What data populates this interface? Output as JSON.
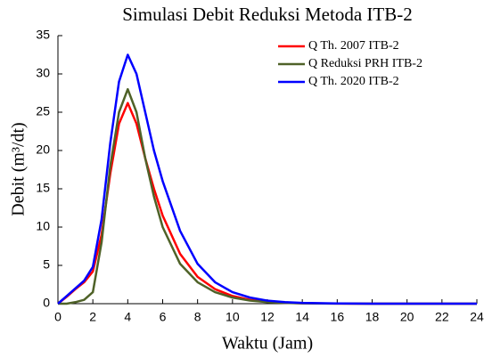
{
  "chart_data": {
    "type": "line",
    "title": "Simulasi Debit Reduksi Metoda ITB-2",
    "x_label": "Waktu (Jam)",
    "y_label": "Debit (m³/dt)",
    "x": [
      0,
      0.5,
      1,
      1.5,
      2,
      2.5,
      3,
      3.5,
      4,
      4.5,
      5,
      5.5,
      6,
      7,
      8,
      9,
      10,
      11,
      12,
      13,
      14,
      16,
      18,
      20,
      22,
      24
    ],
    "series": [
      {
        "name": "Q Th. 2007 ITB-2",
        "color": "#ff0000",
        "values": [
          0,
          0.9,
          1.9,
          2.8,
          4.2,
          9,
          17,
          23.5,
          26.2,
          23.5,
          19,
          15,
          11.5,
          6.5,
          3.5,
          1.9,
          1.0,
          0.5,
          0.25,
          0.12,
          0.06,
          0.02,
          0,
          0,
          0,
          0
        ]
      },
      {
        "name": "Q Reduksi PRH ITB-2",
        "color": "#4f6228",
        "values": [
          0,
          0,
          0.2,
          0.5,
          1.5,
          8,
          18,
          25,
          28,
          25,
          19,
          14,
          10,
          5.2,
          2.8,
          1.5,
          0.8,
          0.4,
          0.2,
          0.1,
          0.05,
          0.01,
          0,
          0,
          0,
          0
        ]
      },
      {
        "name": "Q Th. 2020 ITB-2",
        "color": "#0000ff",
        "values": [
          0,
          1.0,
          2.0,
          3.0,
          4.8,
          11,
          21,
          29,
          32.5,
          30,
          25,
          20,
          16,
          9.5,
          5.2,
          2.8,
          1.5,
          0.8,
          0.4,
          0.2,
          0.1,
          0.03,
          0,
          0,
          0,
          0
        ]
      }
    ],
    "xlim": [
      0,
      24
    ],
    "xticks": [
      0,
      2,
      4,
      6,
      8,
      10,
      12,
      14,
      16,
      18,
      20,
      22,
      24
    ],
    "ylim": [
      0,
      35
    ],
    "yticks": [
      0,
      5,
      10,
      15,
      20,
      25,
      30,
      35
    ],
    "legend": "upper right"
  }
}
